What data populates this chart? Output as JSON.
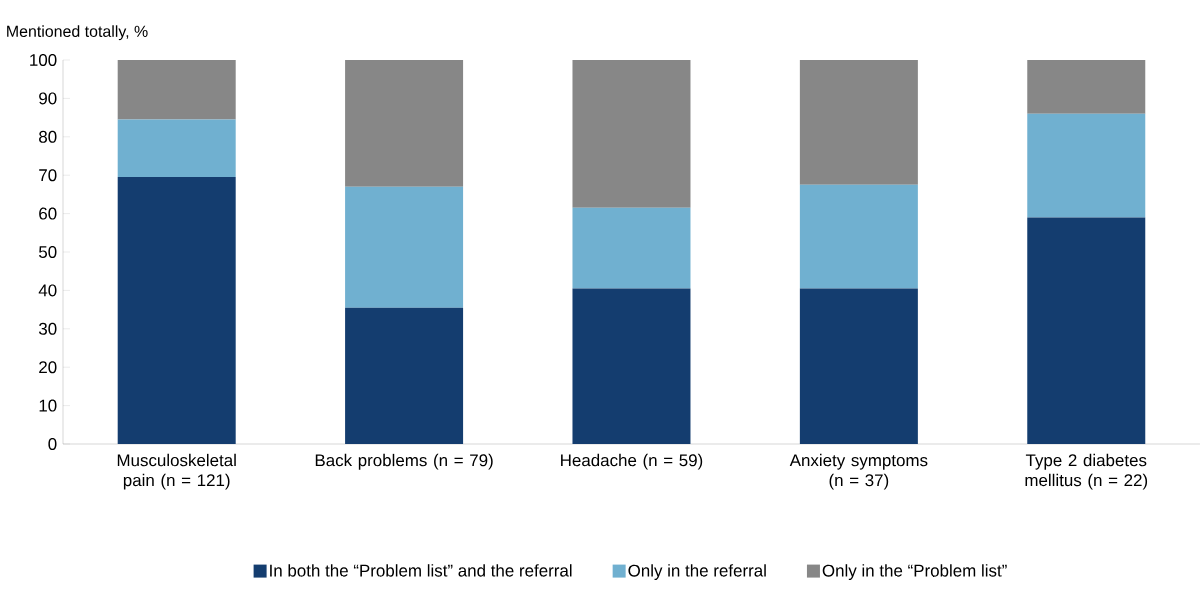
{
  "chart_data": {
    "type": "bar",
    "stacked": true,
    "ylabel": "Mentioned totally, %",
    "categories": [
      "Musculoskeletal pain (n = 121)",
      "Back problems (n = 79)",
      "Headache (n = 59)",
      "Anxiety symptoms (n = 37)",
      "Type 2 diabetes mellitus (n = 22)"
    ],
    "series": [
      {
        "name": "In both the “Problem list” and the referral",
        "color": "#143d6f",
        "values": [
          69.5,
          35.5,
          40.5,
          40.5,
          59
        ]
      },
      {
        "name": "Only in the referral",
        "color": "#70b0d0",
        "values": [
          15,
          31.5,
          21,
          27,
          27
        ]
      },
      {
        "name": "Only in the “Problem list”",
        "color": "#878787",
        "values": [
          15.5,
          33,
          38.5,
          32.5,
          14
        ]
      }
    ],
    "ylim": [
      0,
      100
    ],
    "yticks": [
      0,
      10,
      20,
      30,
      40,
      50,
      60,
      70,
      80,
      90,
      100
    ],
    "legend": "bottom"
  }
}
